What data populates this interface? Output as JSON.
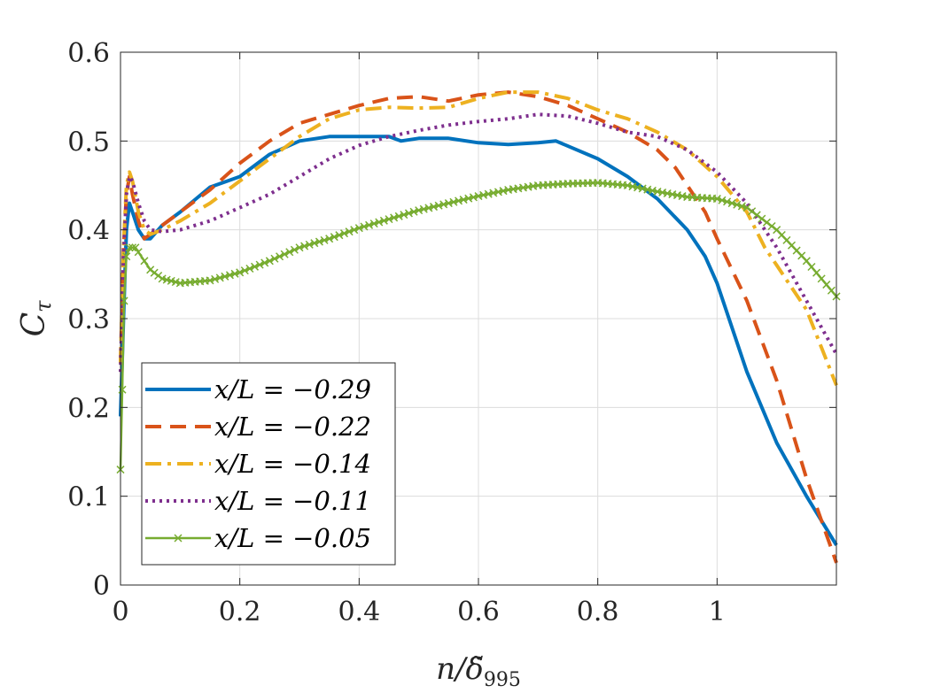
{
  "chart_data": {
    "type": "line",
    "xlabel": "n/δ̃995",
    "xlabel_parts": {
      "var": "n/",
      "sym": "δ̃",
      "sub": "995"
    },
    "ylabel": "Cτ",
    "ylabel_parts": {
      "var": "C",
      "sub": "τ"
    },
    "xlim": [
      0,
      1.2
    ],
    "ylim": [
      0,
      0.6
    ],
    "grid": true,
    "legend_position": "lower-left",
    "x_ticks": [
      {
        "value": 0,
        "label": "0"
      },
      {
        "value": 0.2,
        "label": "0.2"
      },
      {
        "value": 0.4,
        "label": "0.4"
      },
      {
        "value": 0.6,
        "label": "0.6"
      },
      {
        "value": 0.8,
        "label": "0.8"
      },
      {
        "value": 1.0,
        "label": "1"
      }
    ],
    "y_ticks": [
      {
        "value": 0,
        "label": "0"
      },
      {
        "value": 0.1,
        "label": "0.1"
      },
      {
        "value": 0.2,
        "label": "0.2"
      },
      {
        "value": 0.3,
        "label": "0.3"
      },
      {
        "value": 0.4,
        "label": "0.4"
      },
      {
        "value": 0.5,
        "label": "0.5"
      },
      {
        "value": 0.6,
        "label": "0.6"
      }
    ],
    "series": [
      {
        "name": "x/L = −0.29",
        "color": "#0072BD",
        "style": "solid",
        "marker": "none",
        "x": [
          0,
          0.005,
          0.01,
          0.015,
          0.02,
          0.03,
          0.04,
          0.05,
          0.07,
          0.1,
          0.15,
          0.2,
          0.25,
          0.3,
          0.35,
          0.4,
          0.45,
          0.47,
          0.5,
          0.55,
          0.6,
          0.65,
          0.7,
          0.73,
          0.8,
          0.85,
          0.9,
          0.95,
          0.98,
          1.0,
          1.05,
          1.1,
          1.15,
          1.2
        ],
        "y": [
          0.19,
          0.3,
          0.4,
          0.43,
          0.42,
          0.4,
          0.39,
          0.39,
          0.405,
          0.42,
          0.448,
          0.46,
          0.485,
          0.5,
          0.505,
          0.505,
          0.505,
          0.5,
          0.503,
          0.503,
          0.498,
          0.496,
          0.498,
          0.5,
          0.48,
          0.46,
          0.435,
          0.4,
          0.37,
          0.34,
          0.24,
          0.16,
          0.1,
          0.045
        ]
      },
      {
        "name": "x/L = −0.22",
        "color": "#D95319",
        "style": "dashed",
        "marker": "none",
        "x": [
          0,
          0.005,
          0.01,
          0.015,
          0.02,
          0.03,
          0.04,
          0.05,
          0.07,
          0.1,
          0.15,
          0.2,
          0.25,
          0.3,
          0.35,
          0.4,
          0.45,
          0.5,
          0.55,
          0.6,
          0.65,
          0.7,
          0.75,
          0.8,
          0.85,
          0.9,
          0.93,
          0.95,
          0.98,
          1.0,
          1.05,
          1.1,
          1.15,
          1.2
        ],
        "y": [
          0.25,
          0.38,
          0.44,
          0.46,
          0.44,
          0.41,
          0.39,
          0.395,
          0.405,
          0.42,
          0.445,
          0.475,
          0.5,
          0.52,
          0.53,
          0.54,
          0.548,
          0.55,
          0.545,
          0.552,
          0.555,
          0.55,
          0.54,
          0.525,
          0.51,
          0.49,
          0.47,
          0.45,
          0.42,
          0.39,
          0.32,
          0.23,
          0.12,
          0.025
        ]
      },
      {
        "name": "x/L = −0.14",
        "color": "#EDB120",
        "style": "dash-dot",
        "marker": "none",
        "x": [
          0,
          0.005,
          0.01,
          0.015,
          0.02,
          0.03,
          0.04,
          0.05,
          0.07,
          0.1,
          0.15,
          0.2,
          0.25,
          0.3,
          0.35,
          0.4,
          0.45,
          0.5,
          0.55,
          0.6,
          0.65,
          0.7,
          0.75,
          0.8,
          0.85,
          0.9,
          0.95,
          1.0,
          1.05,
          1.08,
          1.1,
          1.15,
          1.2
        ],
        "y": [
          0.25,
          0.38,
          0.45,
          0.465,
          0.455,
          0.42,
          0.4,
          0.395,
          0.4,
          0.41,
          0.43,
          0.455,
          0.48,
          0.505,
          0.525,
          0.535,
          0.538,
          0.537,
          0.538,
          0.548,
          0.555,
          0.555,
          0.548,
          0.535,
          0.525,
          0.51,
          0.49,
          0.46,
          0.42,
          0.38,
          0.36,
          0.31,
          0.225
        ]
      },
      {
        "name": "x/L = −0.11",
        "color": "#7E2F8E",
        "style": "dotted",
        "marker": "none",
        "x": [
          0,
          0.005,
          0.01,
          0.015,
          0.02,
          0.03,
          0.04,
          0.05,
          0.07,
          0.1,
          0.15,
          0.2,
          0.25,
          0.3,
          0.35,
          0.4,
          0.45,
          0.5,
          0.55,
          0.6,
          0.65,
          0.7,
          0.75,
          0.8,
          0.85,
          0.9,
          0.95,
          1.0,
          1.05,
          1.1,
          1.15,
          1.2
        ],
        "y": [
          0.24,
          0.37,
          0.44,
          0.46,
          0.455,
          0.43,
          0.41,
          0.4,
          0.398,
          0.4,
          0.41,
          0.425,
          0.44,
          0.46,
          0.48,
          0.495,
          0.505,
          0.512,
          0.518,
          0.522,
          0.525,
          0.53,
          0.528,
          0.52,
          0.51,
          0.505,
          0.49,
          0.465,
          0.43,
          0.38,
          0.32,
          0.26
        ]
      },
      {
        "name": "x/L = −0.05",
        "color": "#77AC30",
        "style": "solid",
        "marker": "x",
        "x": [
          0,
          0.003,
          0.006,
          0.01,
          0.015,
          0.02,
          0.025,
          0.03,
          0.04,
          0.05,
          0.07,
          0.1,
          0.15,
          0.2,
          0.25,
          0.3,
          0.35,
          0.4,
          0.45,
          0.5,
          0.55,
          0.6,
          0.65,
          0.7,
          0.75,
          0.8,
          0.85,
          0.9,
          0.95,
          1.0,
          1.05,
          1.1,
          1.15,
          1.2
        ],
        "y": [
          0.13,
          0.22,
          0.32,
          0.37,
          0.38,
          0.38,
          0.38,
          0.375,
          0.365,
          0.355,
          0.345,
          0.34,
          0.343,
          0.352,
          0.365,
          0.38,
          0.39,
          0.402,
          0.412,
          0.422,
          0.43,
          0.438,
          0.445,
          0.45,
          0.452,
          0.453,
          0.45,
          0.443,
          0.437,
          0.435,
          0.425,
          0.4,
          0.365,
          0.325
        ]
      }
    ]
  }
}
